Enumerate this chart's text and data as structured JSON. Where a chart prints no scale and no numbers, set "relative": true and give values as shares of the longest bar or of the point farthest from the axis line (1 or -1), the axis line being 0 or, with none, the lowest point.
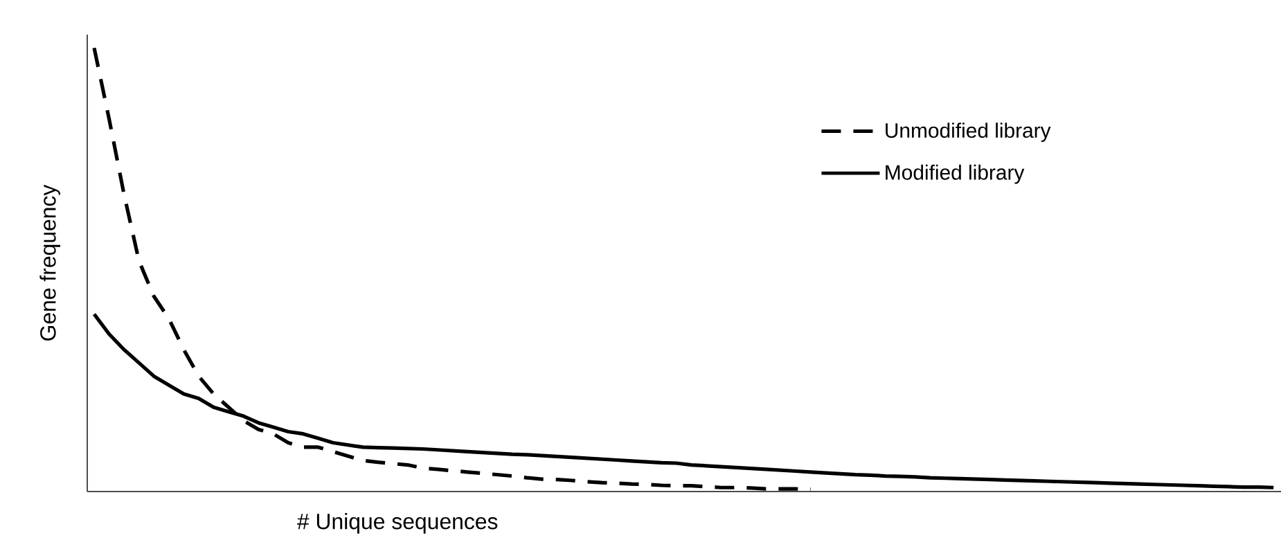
{
  "chart_data": {
    "type": "line",
    "relative": true,
    "xlabel": "# Unique sequences",
    "ylabel": "Gene frequency",
    "legend": "top right",
    "categories": [
      null,
      null,
      null,
      null,
      null,
      null,
      null,
      null,
      null,
      null,
      null,
      null,
      null,
      null,
      null,
      null,
      null,
      null,
      null,
      null,
      null,
      null,
      null,
      null,
      null,
      null,
      null,
      null,
      null,
      null,
      null,
      null,
      null,
      null,
      null,
      null,
      null,
      null,
      null,
      null,
      null,
      null,
      null,
      null,
      null,
      null,
      null,
      null,
      null,
      null,
      null,
      null,
      null,
      null,
      null,
      null,
      null,
      null,
      null,
      null,
      null,
      null,
      null,
      null,
      null,
      null,
      null,
      null,
      null,
      null,
      null,
      null,
      null,
      null,
      null,
      null,
      null,
      null,
      null,
      null
    ],
    "series": [
      {
        "name": "Unmodified library",
        "color": "#000000",
        "line_style": "dashed",
        "values": [
          1.0,
          0.84,
          0.67,
          0.52,
          0.44,
          0.39,
          0.32,
          0.26,
          0.22,
          0.19,
          0.16,
          0.14,
          0.13,
          0.11,
          0.1,
          0.1,
          0.09,
          0.08,
          0.07,
          0.066,
          0.063,
          0.06,
          0.053,
          0.05,
          0.047,
          0.044,
          0.041,
          0.038,
          0.035,
          0.031,
          0.028,
          0.027,
          0.025,
          0.022,
          0.02,
          0.019,
          0.017,
          0.016,
          0.014,
          0.013,
          0.013,
          0.011,
          0.009,
          0.009,
          0.008,
          0.006,
          0.006,
          0.006,
          0.005,
          null,
          null,
          null,
          null,
          null,
          null,
          null,
          null,
          null,
          null,
          null,
          null,
          null,
          null,
          null,
          null,
          null,
          null,
          null,
          null,
          null,
          null,
          null,
          null,
          null,
          null,
          null,
          null,
          null,
          null,
          null
        ]
      },
      {
        "name": "Modified library",
        "color": "#000000",
        "line_style": "solid",
        "values": [
          0.4,
          0.355,
          0.32,
          0.29,
          0.26,
          0.24,
          0.22,
          0.21,
          0.19,
          0.18,
          0.17,
          0.155,
          0.145,
          0.135,
          0.13,
          0.12,
          0.11,
          0.105,
          0.1,
          0.099,
          0.098,
          0.097,
          0.096,
          0.094,
          0.092,
          0.09,
          0.088,
          0.086,
          0.084,
          0.083,
          0.081,
          0.079,
          0.077,
          0.075,
          0.073,
          0.071,
          0.069,
          0.067,
          0.065,
          0.064,
          0.06,
          0.058,
          0.056,
          0.054,
          0.052,
          0.05,
          0.048,
          0.046,
          0.044,
          0.042,
          0.04,
          0.038,
          0.037,
          0.035,
          0.034,
          0.033,
          0.031,
          0.03,
          0.029,
          0.028,
          0.027,
          0.026,
          0.025,
          0.024,
          0.023,
          0.022,
          0.021,
          0.02,
          0.019,
          0.018,
          0.017,
          0.016,
          0.015,
          0.014,
          0.013,
          0.012,
          0.011,
          0.01,
          0.01,
          0.009
        ]
      }
    ]
  }
}
